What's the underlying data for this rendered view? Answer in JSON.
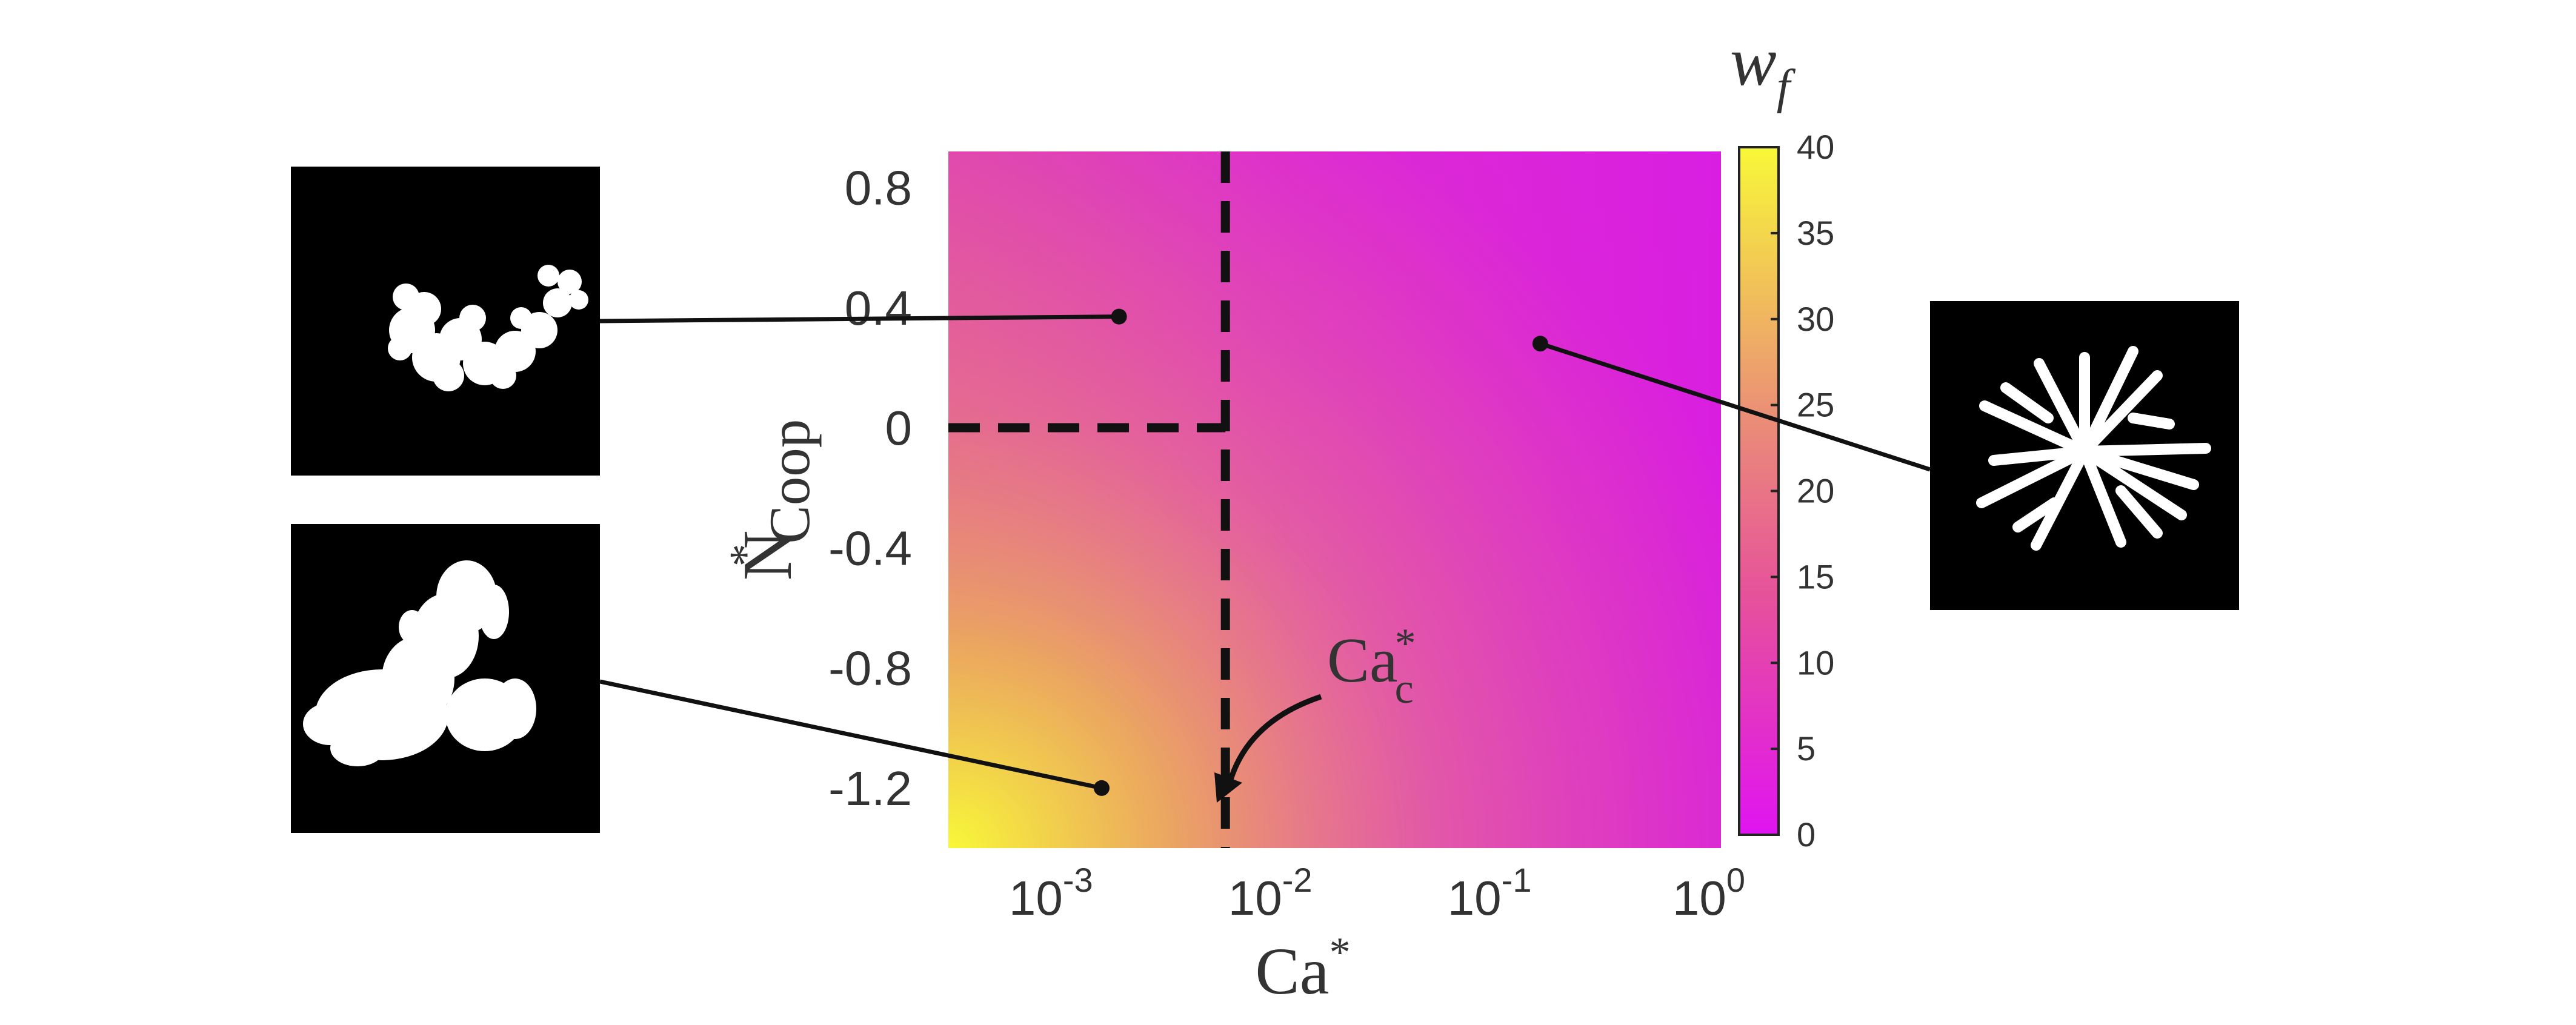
{
  "chart_data": {
    "type": "heatmap",
    "x_scale": "log",
    "x_range": [
      0.0003,
      1
    ],
    "y_range": [
      -1.4,
      0.92
    ],
    "xlabel": "Ca",
    "xlabel_sup": "*",
    "ylabel": "N",
    "ylabel_sup": "*",
    "ylabel_sub": "Coop",
    "x_ticks": [
      {
        "value": 0.001,
        "base": "10",
        "exp": "-3"
      },
      {
        "value": 0.01,
        "base": "10",
        "exp": "-2"
      },
      {
        "value": 0.1,
        "base": "10",
        "exp": "-1"
      },
      {
        "value": 1,
        "base": "10",
        "exp": "0"
      }
    ],
    "y_ticks": [
      {
        "value": 0.8,
        "label": "0.8"
      },
      {
        "value": 0.4,
        "label": "0.4"
      },
      {
        "value": 0,
        "label": "0"
      },
      {
        "value": -0.4,
        "label": "-0.4"
      },
      {
        "value": -0.8,
        "label": "-0.8"
      },
      {
        "value": -1.2,
        "label": "-1.2"
      }
    ],
    "colorbar": {
      "label": "w",
      "label_sub": "f",
      "min": 0,
      "max": 40,
      "ticks": [
        "0",
        "5",
        "10",
        "15",
        "20",
        "25",
        "30",
        "35",
        "40"
      ],
      "colormap": [
        "#e014f0",
        "#f8f838"
      ]
    },
    "corner_values": {
      "low_ca_low_n": 40,
      "low_ca_high_n": 13,
      "high_ca_low_n": 9,
      "high_ca_high_n": 3
    },
    "critical_ca": {
      "value": 0.0055,
      "label": "Ca",
      "sup": "*",
      "sub": "c"
    },
    "threshold_n": 0,
    "sample_points": [
      {
        "name": "compact-branched",
        "ca": 0.0018,
        "n": 0.37
      },
      {
        "name": "compact-blob",
        "ca": 0.0015,
        "n": -1.2
      },
      {
        "name": "radial-fingering",
        "ca": 0.15,
        "n": 0.28
      }
    ]
  }
}
